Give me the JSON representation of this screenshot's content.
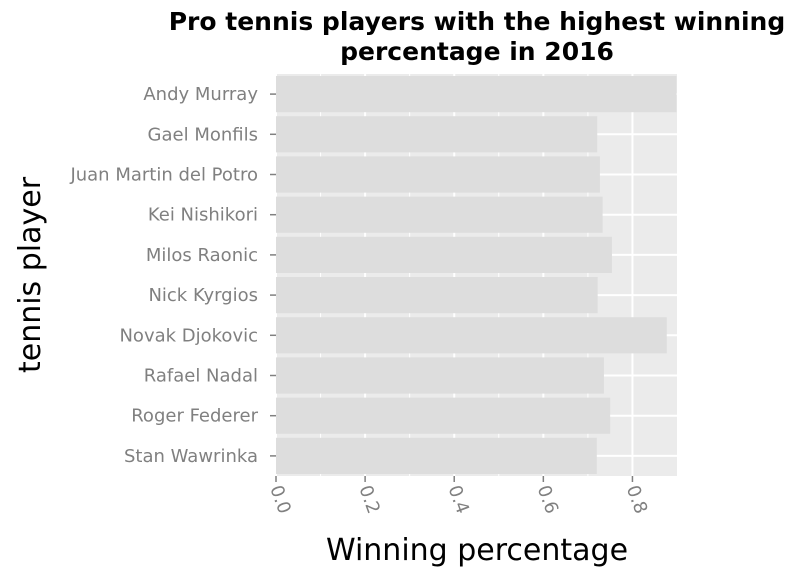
{
  "chart_data": {
    "type": "bar",
    "orientation": "horizontal",
    "title_lines": [
      "Pro tennis players with the highest winning",
      "percentage in 2016"
    ],
    "xlabel": "Winning percentage",
    "ylabel": "tennis player",
    "categories": [
      "Andy Murray",
      "Gael Monfils",
      "Juan Martin del Potro",
      "Kei Nishikori",
      "Milos Raonic",
      "Nick Kyrgios",
      "Novak Djokovic",
      "Rafael Nadal",
      "Roger Federer",
      "Stan Wawrinka"
    ],
    "values": [
      0.899,
      0.721,
      0.727,
      0.733,
      0.754,
      0.722,
      0.877,
      0.736,
      0.75,
      0.72
    ],
    "xlim": [
      0,
      0.9
    ],
    "xticks": [
      "0.0",
      "0.2",
      "0.4",
      "0.6",
      "0.8"
    ],
    "xtick_values": [
      0,
      0.2,
      0.4,
      0.6,
      0.8
    ],
    "grid": true,
    "colors": {
      "panel": "#ebebeb",
      "bar": "#dddddd",
      "grid": "#ffffff",
      "tick": "#808080"
    }
  }
}
